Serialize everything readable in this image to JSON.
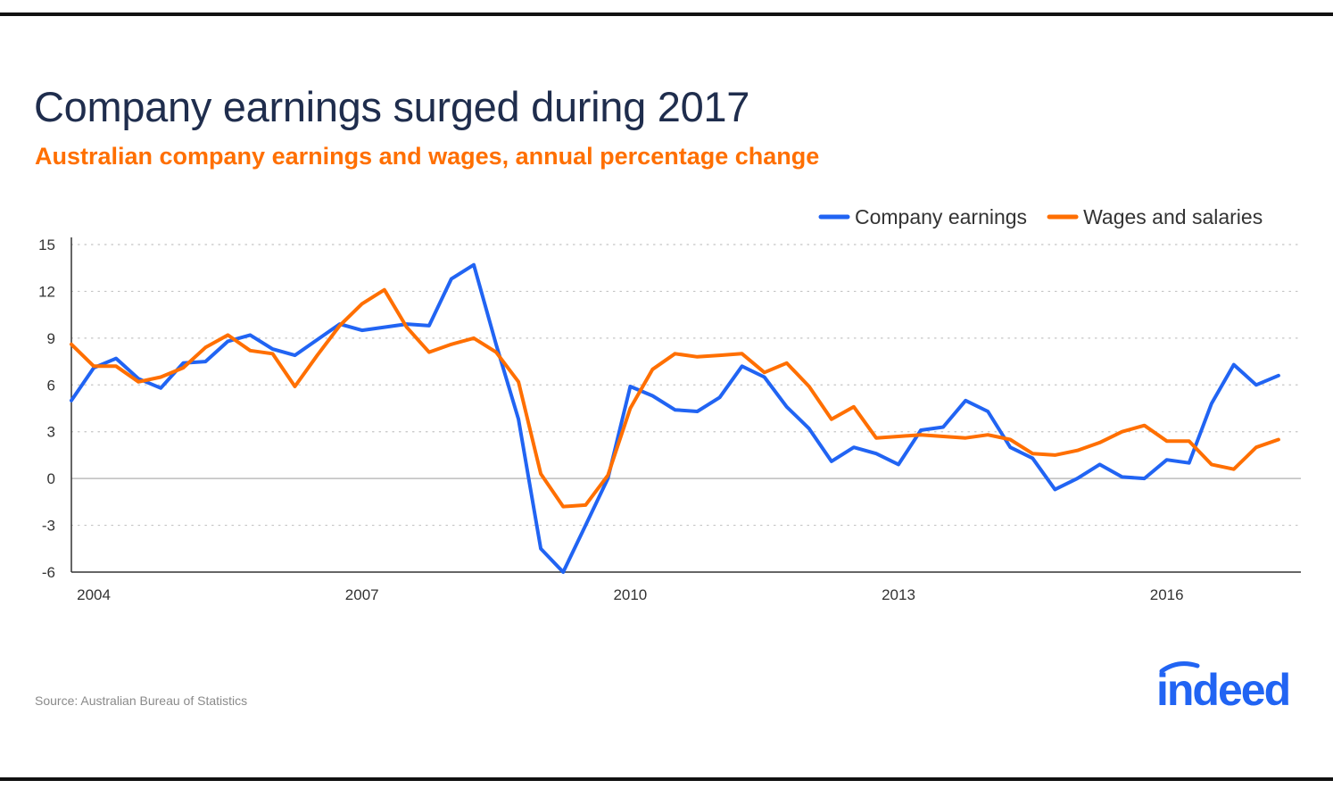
{
  "title": "Company earnings surged during 2017",
  "subtitle": "Australian company earnings and wages, annual percentage change",
  "source": "Source: Australian Bureau of Statistics",
  "logo_text": "indeed",
  "colors": {
    "earnings": "#2164f3",
    "wages": "#ff6f00",
    "title": "#1f2d4d",
    "subtitle": "#ff6f00"
  },
  "chart_data": {
    "type": "line",
    "title": "Company earnings surged during 2017",
    "subtitle": "Australian company earnings and wages, annual percentage change",
    "xlabel": "",
    "ylabel": "",
    "x_start": 2003.75,
    "x_step": 0.25,
    "xlim": [
      2003.75,
      2017.5
    ],
    "ylim": [
      -6,
      15
    ],
    "y_ticks": [
      15,
      12,
      9,
      6,
      3,
      0,
      -3,
      -6
    ],
    "x_ticks": [
      2004,
      2007,
      2010,
      2013,
      2016
    ],
    "grid": true,
    "legend_position": "top-right",
    "series": [
      {
        "name": "Company earnings",
        "color": "#2164f3",
        "values": [
          5.0,
          7.1,
          7.7,
          6.4,
          5.8,
          7.4,
          7.5,
          8.8,
          9.2,
          8.3,
          7.9,
          8.9,
          9.9,
          9.5,
          9.7,
          9.9,
          9.8,
          12.8,
          13.7,
          8.6,
          3.8,
          -4.5,
          -6.0,
          -3.0,
          0.0,
          5.9,
          5.3,
          4.4,
          4.3,
          5.2,
          7.2,
          6.5,
          4.6,
          3.2,
          1.1,
          2.0,
          1.6,
          0.9,
          3.1,
          3.3,
          5.0,
          4.3,
          2.0,
          1.3,
          -0.7,
          0.0,
          0.9,
          0.1,
          0.0,
          1.2,
          1.0,
          4.8,
          7.3,
          6.0,
          6.6
        ]
      },
      {
        "name": "Wages and salaries",
        "color": "#ff6f00",
        "values": [
          8.6,
          7.2,
          7.2,
          6.2,
          6.5,
          7.1,
          8.4,
          9.2,
          8.2,
          8.0,
          5.9,
          7.9,
          9.8,
          11.2,
          12.1,
          9.7,
          8.1,
          8.6,
          9.0,
          8.1,
          6.2,
          0.3,
          -1.8,
          -1.7,
          0.2,
          4.5,
          7.0,
          8.0,
          7.8,
          7.9,
          8.0,
          6.8,
          7.4,
          5.9,
          3.8,
          4.6,
          2.6,
          2.7,
          2.8,
          2.7,
          2.6,
          2.8,
          2.5,
          1.6,
          1.5,
          1.8,
          2.3,
          3.0,
          3.4,
          2.4,
          2.4,
          0.9,
          0.6,
          2.0,
          2.5
        ]
      }
    ]
  }
}
